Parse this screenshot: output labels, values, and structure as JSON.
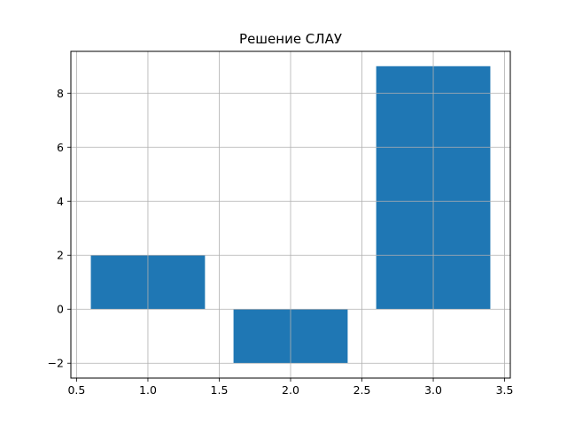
{
  "chart_data": {
    "type": "bar",
    "title": "Решение СЛАУ",
    "xlabel": "",
    "ylabel": "",
    "x": [
      1,
      2,
      3
    ],
    "values": [
      2,
      -2,
      9
    ],
    "bar_width": 0.8,
    "xlim": [
      0.46,
      3.54
    ],
    "ylim": [
      -2.55,
      9.55
    ],
    "xticks": [
      0.5,
      1.0,
      1.5,
      2.0,
      2.5,
      3.0,
      3.5
    ],
    "xtick_labels": [
      "0.5",
      "1.0",
      "1.5",
      "2.0",
      "2.5",
      "3.0",
      "3.5"
    ],
    "yticks": [
      -2,
      0,
      2,
      4,
      6,
      8
    ],
    "ytick_labels": [
      "−2",
      "0",
      "2",
      "4",
      "6",
      "8"
    ],
    "grid": true,
    "colors": {
      "bar": "#1f77b4",
      "grid": "#b0b0b0",
      "axis": "#000000"
    }
  }
}
